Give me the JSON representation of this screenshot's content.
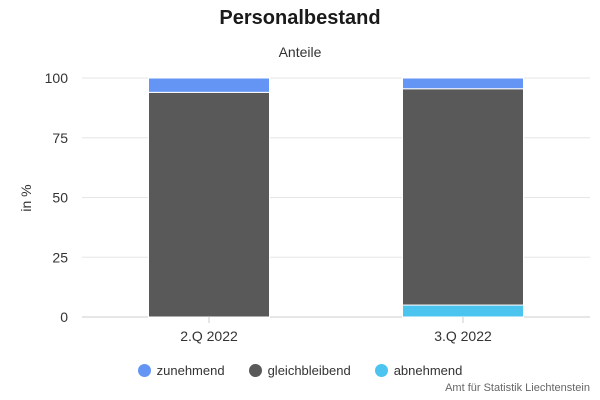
{
  "chart_data": {
    "type": "bar",
    "stacked": true,
    "title": "Personalbestand",
    "subtitle": "Anteile",
    "xlabel": "",
    "ylabel": "in %",
    "ylim": [
      0,
      100
    ],
    "yticks": [
      "0",
      "25",
      "50",
      "75",
      "100"
    ],
    "categories": [
      "2.Q 2022",
      "3.Q 2022"
    ],
    "series": [
      {
        "name": "abnehmend",
        "color": "#4cc4f0",
        "values": [
          0,
          5
        ]
      },
      {
        "name": "gleichbleibend",
        "color": "#595959",
        "values": [
          94,
          90.5
        ]
      },
      {
        "name": "zunehmend",
        "color": "#6495f5",
        "values": [
          6,
          4.5
        ]
      }
    ],
    "legend_order": [
      "zunehmend",
      "gleichbleibend",
      "abnehmend"
    ],
    "grid": true,
    "legend_position": "bottom-center"
  },
  "credit": "Amt für Statistik Liechtenstein"
}
